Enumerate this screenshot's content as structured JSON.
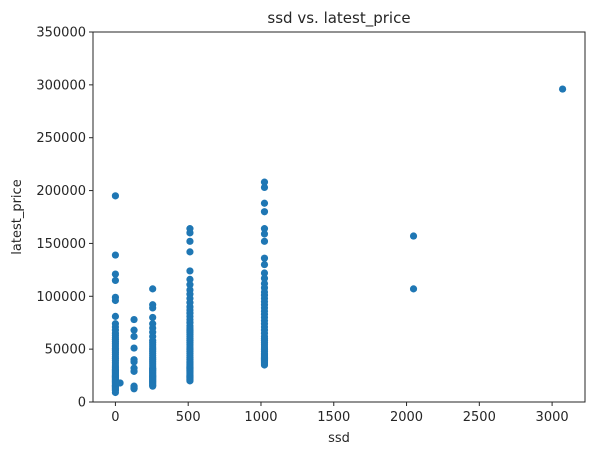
{
  "chart_data": {
    "type": "scatter",
    "title": "ssd vs. latest_price",
    "xlabel": "ssd",
    "ylabel": "latest_price",
    "xlim": [
      -154,
      3226
    ],
    "ylim": [
      0,
      350000
    ],
    "xticks": [
      0,
      500,
      1000,
      1500,
      2000,
      2500,
      3000
    ],
    "yticks": [
      0,
      50000,
      100000,
      150000,
      200000,
      250000,
      300000,
      350000
    ],
    "grid": false,
    "color": "#1f77b4",
    "series": [
      {
        "x": [
          0,
          0,
          0,
          0,
          0,
          0,
          0,
          0,
          0,
          0,
          0,
          0,
          0,
          0,
          0,
          0,
          0,
          0,
          0,
          0,
          0,
          0,
          0,
          0,
          0,
          0,
          0,
          0,
          0,
          0,
          0,
          0,
          0,
          0,
          0,
          0,
          0,
          0,
          0,
          0,
          0,
          0,
          0,
          0,
          0,
          0,
          0,
          0,
          0,
          32,
          128,
          128,
          128,
          128,
          128,
          128,
          128,
          128,
          128,
          128,
          128,
          128,
          256,
          256,
          256,
          256,
          256,
          256,
          256,
          256,
          256,
          256,
          256,
          256,
          256,
          256,
          256,
          256,
          256,
          256,
          256,
          256,
          256,
          256,
          256,
          256,
          256,
          256,
          256,
          256,
          256,
          256,
          256,
          256,
          256,
          256,
          256,
          256,
          256,
          256,
          256,
          512,
          512,
          512,
          512,
          512,
          512,
          512,
          512,
          512,
          512,
          512,
          512,
          512,
          512,
          512,
          512,
          512,
          512,
          512,
          512,
          512,
          512,
          512,
          512,
          512,
          512,
          512,
          512,
          512,
          512,
          512,
          512,
          512,
          512,
          512,
          512,
          512,
          512,
          512,
          512,
          512,
          512,
          512,
          512,
          512,
          512,
          512,
          512,
          512,
          512,
          512,
          512,
          512,
          1024,
          1024,
          1024,
          1024,
          1024,
          1024,
          1024,
          1024,
          1024,
          1024,
          1024,
          1024,
          1024,
          1024,
          1024,
          1024,
          1024,
          1024,
          1024,
          1024,
          1024,
          1024,
          1024,
          1024,
          1024,
          1024,
          1024,
          1024,
          1024,
          1024,
          1024,
          1024,
          1024,
          1024,
          1024,
          1024,
          1024,
          1024,
          1024,
          1024,
          1024,
          1024,
          1024,
          1024,
          1024,
          1024,
          1024,
          2048,
          2048,
          3072
        ],
        "y": [
          195000,
          139000,
          121000,
          115000,
          99000,
          96000,
          81000,
          74000,
          71000,
          68000,
          65000,
          63000,
          61000,
          59000,
          57000,
          55000,
          53000,
          51000,
          49000,
          47000,
          45000,
          43000,
          41000,
          39000,
          37000,
          35000,
          33000,
          31000,
          30000,
          29000,
          28000,
          27000,
          26000,
          25000,
          24000,
          23000,
          22000,
          21000,
          20000,
          19000,
          18000,
          17000,
          16000,
          15000,
          14000,
          13000,
          12000,
          11000,
          9000,
          18000,
          78000,
          68000,
          62000,
          51000,
          40000,
          38000,
          32000,
          29000,
          15000,
          14000,
          13000,
          12500,
          107000,
          92000,
          89000,
          80000,
          74000,
          70000,
          66000,
          62000,
          58000,
          56000,
          54000,
          52000,
          50000,
          48000,
          46000,
          44000,
          42000,
          40000,
          38000,
          36000,
          34000,
          32000,
          31000,
          30000,
          29000,
          28000,
          27000,
          26000,
          25000,
          24000,
          23000,
          22000,
          21000,
          20000,
          19000,
          18000,
          17000,
          16000,
          15000,
          164000,
          160000,
          152000,
          142000,
          124000,
          116000,
          111000,
          106000,
          102000,
          98000,
          94000,
          90000,
          87000,
          84000,
          81000,
          78000,
          75000,
          72000,
          70000,
          68000,
          66000,
          64000,
          62000,
          60000,
          58000,
          56000,
          54000,
          52000,
          50000,
          48000,
          46000,
          44000,
          42000,
          40000,
          38000,
          37000,
          36000,
          35000,
          34000,
          33000,
          32000,
          31000,
          30000,
          29000,
          28000,
          27000,
          26000,
          25000,
          24000,
          23000,
          22000,
          21000,
          20000,
          208000,
          203000,
          188000,
          180000,
          164000,
          159000,
          152000,
          136000,
          130000,
          122000,
          117000,
          112000,
          108000,
          104000,
          101000,
          98000,
          95000,
          92000,
          89000,
          86000,
          83000,
          80000,
          77000,
          74000,
          71000,
          68000,
          65000,
          62000,
          60000,
          58000,
          56000,
          54000,
          52000,
          50000,
          48000,
          46000,
          45000,
          44000,
          43000,
          42000,
          41000,
          40000,
          39000,
          38000,
          37000,
          36000,
          35000,
          157000,
          107000,
          296000
        ]
      }
    ]
  }
}
